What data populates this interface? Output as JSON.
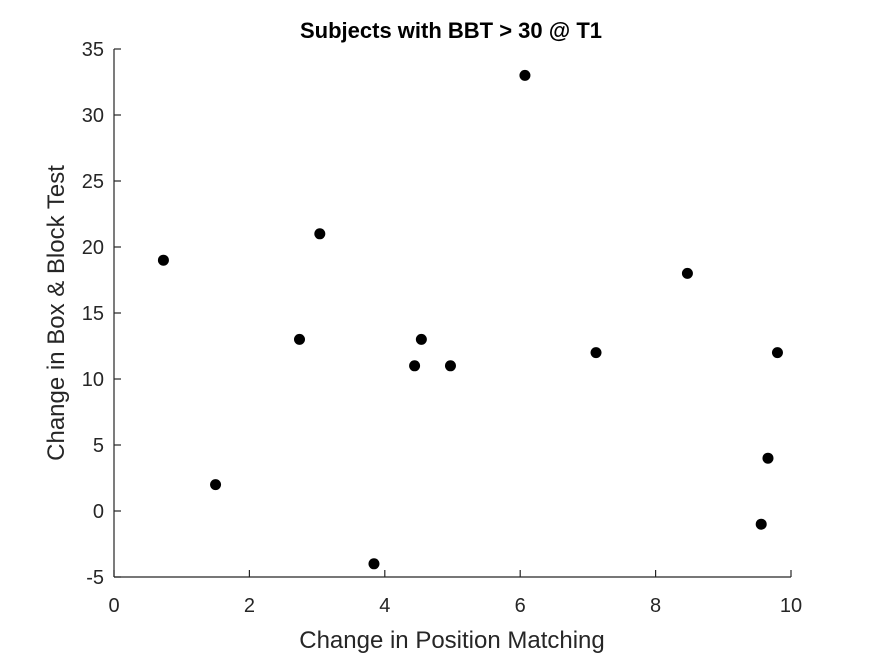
{
  "chart_data": {
    "type": "scatter",
    "title": "Subjects with BBT > 30 @ T1",
    "xlabel": "Change in Position Matching",
    "ylabel": "Change in Box & Block Test",
    "xlim": [
      0,
      10
    ],
    "ylim": [
      -5,
      35
    ],
    "xticks": [
      0,
      2,
      4,
      6,
      8,
      10
    ],
    "yticks": [
      -5,
      0,
      5,
      10,
      15,
      20,
      25,
      30,
      35
    ],
    "xtick_labels": [
      "0",
      "2",
      "4",
      "6",
      "8",
      "10"
    ],
    "ytick_labels": [
      "-5",
      "0",
      "5",
      "10",
      "15",
      "20",
      "25",
      "30",
      "35"
    ],
    "grid": false,
    "marker_color": "#000000",
    "axis_color": "#262626",
    "points": [
      {
        "x": 0.73,
        "y": 19
      },
      {
        "x": 1.5,
        "y": 2
      },
      {
        "x": 2.74,
        "y": 13
      },
      {
        "x": 3.04,
        "y": 21
      },
      {
        "x": 3.84,
        "y": -4
      },
      {
        "x": 4.44,
        "y": 11
      },
      {
        "x": 4.54,
        "y": 13
      },
      {
        "x": 4.97,
        "y": 11
      },
      {
        "x": 6.07,
        "y": 33
      },
      {
        "x": 7.12,
        "y": 12
      },
      {
        "x": 8.47,
        "y": 18
      },
      {
        "x": 9.56,
        "y": -1
      },
      {
        "x": 9.66,
        "y": 4
      },
      {
        "x": 9.8,
        "y": 12
      }
    ]
  }
}
